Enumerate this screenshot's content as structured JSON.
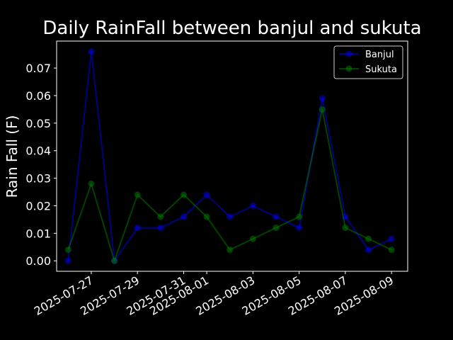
{
  "chart_data": {
    "type": "line",
    "title": "Daily RainFall between banjul and sukuta",
    "xlabel": "",
    "ylabel": "Rain Fall (F)",
    "x": [
      "2025-07-26",
      "2025-07-27",
      "2025-07-28",
      "2025-07-29",
      "2025-07-30",
      "2025-07-31",
      "2025-08-01",
      "2025-08-02",
      "2025-08-03",
      "2025-08-04",
      "2025-08-05",
      "2025-08-06",
      "2025-08-07",
      "2025-08-08",
      "2025-08-09"
    ],
    "x_ticks": [
      "2025-07-27",
      "2025-07-29",
      "2025-07-31",
      "2025-08-01",
      "2025-08-03",
      "2025-08-05",
      "2025-08-07",
      "2025-08-09"
    ],
    "y_ticks": [
      "0.00",
      "0.01",
      "0.02",
      "0.03",
      "0.04",
      "0.05",
      "0.06",
      "0.07"
    ],
    "ylim": [
      -0.0038,
      0.0798
    ],
    "xlim": [
      "2025-07-25T12:00",
      "2025-08-09T16:48"
    ],
    "grid": false,
    "legend_position": "top-right",
    "series": [
      {
        "name": "Banjul",
        "color": "#0000ff",
        "values": [
          0.0,
          0.076,
          0.0,
          0.012,
          0.012,
          0.016,
          0.024,
          0.016,
          0.02,
          0.016,
          0.012,
          0.059,
          0.016,
          0.004,
          0.008
        ]
      },
      {
        "name": "Sukuta",
        "color": "#008000",
        "values": [
          0.004,
          0.028,
          0.0,
          0.024,
          0.016,
          0.024,
          0.016,
          0.004,
          0.008,
          0.012,
          0.016,
          0.055,
          0.012,
          0.008,
          0.004
        ]
      }
    ]
  }
}
